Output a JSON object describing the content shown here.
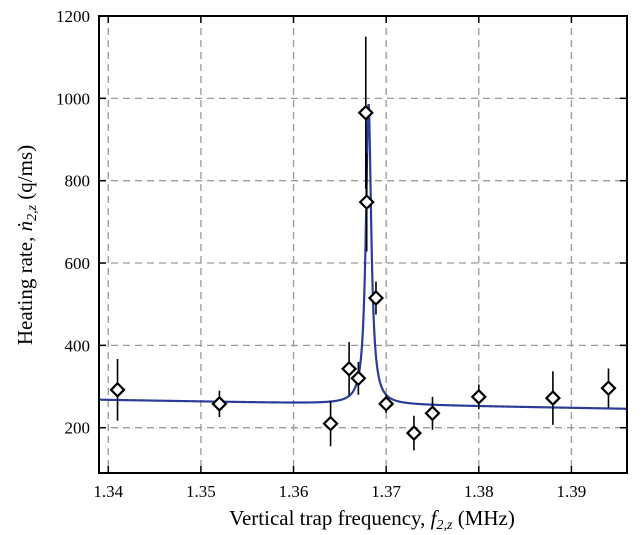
{
  "chart_data": {
    "type": "scatter",
    "title": "",
    "xlabel": "Vertical trap frequency, f2,z (MHz)",
    "xlabel_parts": {
      "pre": "Vertical trap frequency, ",
      "sym": "f",
      "sub": "2,z",
      "post": " (MHz)"
    },
    "ylabel": "Heating rate, ṅ2,z (q/ms)",
    "ylabel_parts": {
      "pre": "Heating rate, ",
      "sym": "ṅ",
      "sub": "2,z",
      "post": " (q/ms)"
    },
    "xlim": [
      1.339,
      1.396
    ],
    "ylim": [
      90,
      1200
    ],
    "xticks": [
      1.34,
      1.35,
      1.36,
      1.37,
      1.38,
      1.39
    ],
    "xtick_labels": [
      "1.34",
      "1.35",
      "1.36",
      "1.37",
      "1.38",
      "1.39"
    ],
    "yticks": [
      200,
      400,
      600,
      800,
      1000,
      1200
    ],
    "ytick_labels": [
      "200",
      "400",
      "600",
      "800",
      "1000",
      "1200"
    ],
    "grid": true,
    "series": [
      {
        "kind": "measurements",
        "marker": "diamond",
        "points": [
          {
            "x": 1.341,
            "y": 292,
            "err": 75
          },
          {
            "x": 1.352,
            "y": 258,
            "err": 32
          },
          {
            "x": 1.364,
            "y": 210,
            "err": 55
          },
          {
            "x": 1.366,
            "y": 343,
            "err": 65
          },
          {
            "x": 1.367,
            "y": 320,
            "err": 40
          },
          {
            "x": 1.3678,
            "y": 965,
            "err": 185
          },
          {
            "x": 1.3679,
            "y": 748,
            "err": 120
          },
          {
            "x": 1.3689,
            "y": 515,
            "err": 40
          },
          {
            "x": 1.37,
            "y": 258,
            "err": 22
          },
          {
            "x": 1.373,
            "y": 187,
            "err": 42
          },
          {
            "x": 1.375,
            "y": 235,
            "err": 40
          },
          {
            "x": 1.38,
            "y": 275,
            "err": 30
          },
          {
            "x": 1.388,
            "y": 272,
            "err": 65
          },
          {
            "x": 1.394,
            "y": 296,
            "err": 48
          }
        ]
      },
      {
        "kind": "fit",
        "color": "#2a3d9a",
        "baseline": {
          "x0": 1.339,
          "y0": 268,
          "slope": -388
        },
        "peak": {
          "center": 1.3681,
          "amplitude": 730,
          "halfwidth": 0.00035
        }
      }
    ]
  }
}
